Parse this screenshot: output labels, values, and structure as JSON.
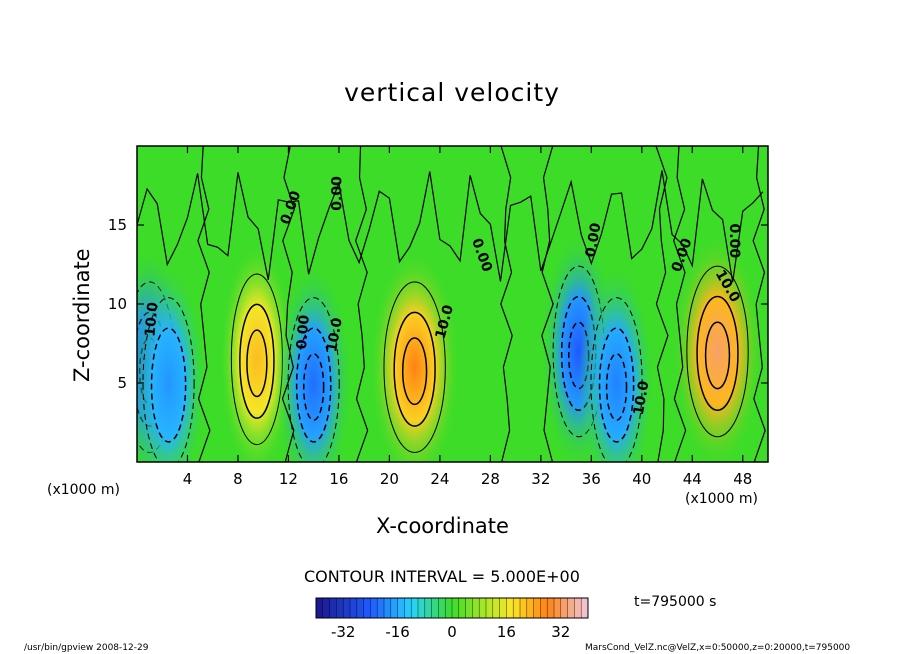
{
  "chart_data": {
    "type": "heatmap",
    "title": "vertical velocity",
    "xlabel": "X-coordinate",
    "ylabel": "Z-coordinate",
    "x_unit_left": "(x1000 m)",
    "x_unit_right": "(x1000 m)",
    "xlim": [
      0,
      50
    ],
    "ylim": [
      0,
      20
    ],
    "x_ticks": [
      4,
      8,
      12,
      16,
      20,
      24,
      28,
      32,
      36,
      40,
      44,
      48
    ],
    "y_ticks": [
      5,
      10,
      15
    ],
    "contour_interval_text": "CONTOUR INTERVAL = 5.000E+00",
    "contour_labels": [
      "0.00",
      "10.0"
    ],
    "colorbar": {
      "range": [
        -40,
        40
      ],
      "ticks": [
        -32,
        -16,
        0,
        16,
        32
      ]
    },
    "time_text": "t=795000 s",
    "cells": [
      {
        "x": 1,
        "z": 6,
        "w": -25
      },
      {
        "x": 2.5,
        "z": 5,
        "w": -18
      },
      {
        "x": 9.5,
        "z": 6.5,
        "w": 22
      },
      {
        "x": 14,
        "z": 5,
        "w": -22
      },
      {
        "x": 22,
        "z": 6,
        "w": 28
      },
      {
        "x": 35,
        "z": 7,
        "w": -24
      },
      {
        "x": 38,
        "z": 5,
        "w": -20
      },
      {
        "x": 46,
        "z": 7,
        "w": 33
      }
    ]
  },
  "footer_left": "/usr/bin/gpview  2008-12-29",
  "footer_right": "MarsCond_VelZ.nc@VelZ,x=0:50000,z=0:20000,t=795000"
}
